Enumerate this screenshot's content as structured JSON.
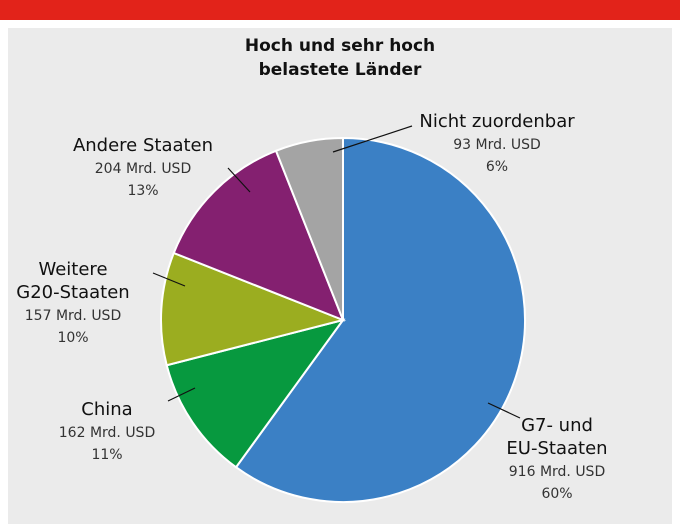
{
  "chart_data": {
    "type": "pie",
    "title": [
      "Hoch und sehr hoch",
      "belastete Länder"
    ],
    "categories": [
      [
        "G7- und",
        "EU-Staaten"
      ],
      [
        "China"
      ],
      [
        "Weitere",
        "G20-Staaten"
      ],
      [
        "Andere Staaten"
      ],
      [
        "Nicht zuordenbar"
      ]
    ],
    "values": [
      60,
      11,
      10,
      13,
      6
    ],
    "value_labels": [
      "60%",
      "11%",
      "10%",
      "13%",
      "6%"
    ],
    "amounts": [
      916,
      162,
      157,
      204,
      93
    ],
    "amount_labels": [
      "916 Mrd. USD",
      "162 Mrd. USD",
      "157 Mrd. USD",
      "204 Mrd. USD",
      "93 Mrd. USD"
    ],
    "colors": [
      "#3b80c5",
      "#07993f",
      "#9bad20",
      "#842070",
      "#a4a4a4"
    ]
  }
}
